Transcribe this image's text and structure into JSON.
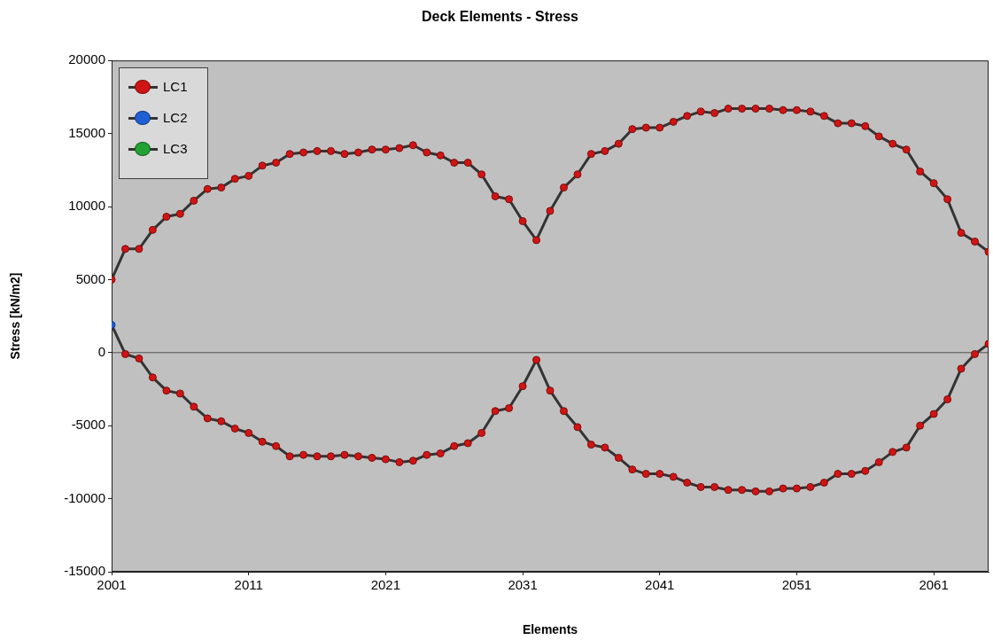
{
  "chart_data": {
    "type": "line",
    "title": "Deck Elements - Stress",
    "xlabel": "Elements",
    "ylabel": "Stress [kN/m2]",
    "x": [
      2001,
      2002,
      2003,
      2004,
      2005,
      2006,
      2007,
      2008,
      2009,
      2010,
      2011,
      2012,
      2013,
      2014,
      2015,
      2016,
      2017,
      2018,
      2019,
      2020,
      2021,
      2022,
      2023,
      2024,
      2025,
      2026,
      2027,
      2028,
      2029,
      2030,
      2031,
      2032,
      2033,
      2034,
      2035,
      2036,
      2037,
      2038,
      2039,
      2040,
      2041,
      2042,
      2043,
      2044,
      2045,
      2046,
      2047,
      2048,
      2049,
      2050,
      2051,
      2052,
      2053,
      2054,
      2055,
      2056,
      2057,
      2058,
      2059,
      2060,
      2061,
      2062,
      2063,
      2064,
      2065
    ],
    "series": [
      {
        "name": "LC1",
        "color": "#d01414",
        "values": [
          5000,
          7100,
          7100,
          8400,
          9300,
          9500,
          10400,
          11200,
          11300,
          11900,
          12100,
          12800,
          13000,
          13600,
          13700,
          13800,
          13800,
          13600,
          13700,
          13900,
          13900,
          14000,
          14200,
          13700,
          13500,
          13000,
          13000,
          12200,
          10700,
          10500,
          9000,
          7700,
          9700,
          11300,
          12200,
          13600,
          13800,
          14300,
          15300,
          15400,
          15400,
          15800,
          16200,
          16500,
          16400,
          16700,
          16700,
          16700,
          16700,
          16600,
          16600,
          16500,
          16200,
          15700,
          15700,
          15500,
          14800,
          14300,
          13900,
          12400,
          11600,
          10500,
          8200,
          7600,
          6900
        ]
      },
      {
        "colors": [
          "#1f5fd6",
          "#d01414",
          "#d01414",
          "#d01414",
          "#d01414",
          "#d01414",
          "#d01414",
          "#d01414",
          "#d01414",
          "#d01414",
          "#d01414",
          "#d01414",
          "#d01414",
          "#d01414",
          "#d01414",
          "#d01414",
          "#d01414",
          "#d01414",
          "#d01414",
          "#d01414",
          "#d01414",
          "#d01414",
          "#d01414",
          "#d01414",
          "#d01414",
          "#d01414",
          "#d01414",
          "#d01414",
          "#d01414",
          "#d01414",
          "#d01414",
          "#d01414",
          "#d01414",
          "#d01414",
          "#d01414",
          "#d01414",
          "#d01414",
          "#d01414",
          "#d01414",
          "#d01414",
          "#d01414",
          "#d01414",
          "#d01414",
          "#d01414",
          "#d01414",
          "#d01414",
          "#d01414",
          "#d01414",
          "#d01414",
          "#d01414",
          "#d01414",
          "#d01414",
          "#d01414",
          "#d01414",
          "#d01414",
          "#d01414",
          "#d01414",
          "#d01414",
          "#d01414",
          "#d01414",
          "#d01414",
          "#d01414",
          "#d01414",
          "#d01414",
          "#d01414"
        ],
        "values": [
          1900,
          -100,
          -400,
          -1700,
          -2600,
          -2800,
          -3700,
          -4500,
          -4700,
          -5200,
          -5500,
          -6100,
          -6400,
          -7100,
          -7000,
          -7100,
          -7100,
          -7000,
          -7100,
          -7200,
          -7300,
          -7500,
          -7400,
          -7000,
          -6900,
          -6400,
          -6200,
          -5500,
          -4000,
          -3800,
          -2300,
          -500,
          -2600,
          -4000,
          -5100,
          -6300,
          -6500,
          -7200,
          -8000,
          -8300,
          -8300,
          -8500,
          -8900,
          -9200,
          -9200,
          -9400,
          -9400,
          -9500,
          -9500,
          -9300,
          -9300,
          -9200,
          -8900,
          -8300,
          -8300,
          -8100,
          -7500,
          -6800,
          -6500,
          -5000,
          -4200,
          -3200,
          -1100,
          -100,
          600
        ]
      },
      {
        "name": "LC2",
        "color": "#1f5fd6",
        "values": [
          null,
          null,
          null,
          null,
          null,
          null,
          null,
          null,
          null,
          null,
          null,
          null,
          null,
          null,
          null,
          null,
          null,
          null,
          null,
          null,
          null,
          null,
          null,
          null,
          null,
          null,
          null,
          null,
          null,
          null,
          null,
          null,
          null,
          null,
          null,
          null,
          null,
          null,
          null,
          null,
          null,
          null,
          null,
          null,
          null,
          null,
          null,
          null,
          null,
          null,
          null,
          null,
          null,
          null,
          null,
          null,
          null,
          null,
          null,
          null,
          null,
          null,
          null,
          null,
          null
        ]
      },
      {
        "name": "LC3",
        "color": "#22a232",
        "values": [
          null,
          null,
          null,
          null,
          null,
          null,
          null,
          null,
          null,
          null,
          null,
          null,
          null,
          null,
          null,
          null,
          null,
          null,
          null,
          null,
          null,
          null,
          null,
          null,
          null,
          null,
          null,
          null,
          null,
          null,
          null,
          null,
          null,
          null,
          null,
          null,
          null,
          null,
          null,
          null,
          null,
          null,
          null,
          null,
          null,
          null,
          null,
          null,
          null,
          null,
          null,
          null,
          null,
          null,
          null,
          null,
          null,
          null,
          null,
          null,
          null,
          null,
          null,
          null,
          null
        ]
      }
    ],
    "xlim": [
      2001,
      2065
    ],
    "xticks": [
      2001,
      2011,
      2021,
      2031,
      2041,
      2051,
      2061
    ],
    "ylim": [
      -15000,
      20000
    ],
    "yticks": [
      -15000,
      -10000,
      -5000,
      0,
      5000,
      10000,
      15000,
      20000
    ],
    "ref_lines": [
      {
        "axis": "y",
        "value": 0,
        "color": "#505050"
      }
    ],
    "grid": false,
    "legend": "top left",
    "marker": "circle",
    "line_style": "solid"
  }
}
